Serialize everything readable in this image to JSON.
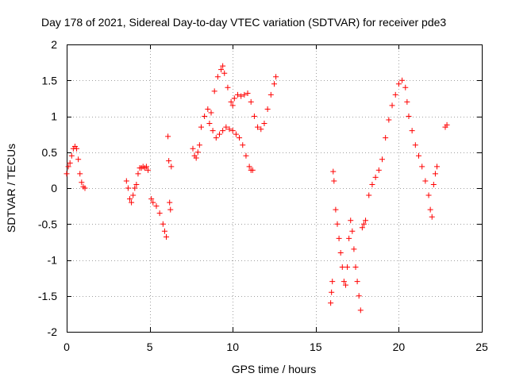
{
  "chart_data": {
    "type": "scatter",
    "title": "Day 178 of 2021, Sidereal Day-to-day VTEC variation (SDTVAR) for receiver pde3",
    "xlabel": "GPS time / hours",
    "ylabel": "SDTVAR / TECUs",
    "xlim": [
      0,
      25
    ],
    "ylim": [
      -2,
      2
    ],
    "xticks": [
      0,
      5,
      10,
      15,
      20,
      25
    ],
    "xtick_labels": [
      "0",
      "5",
      "10",
      "15",
      "20",
      "25"
    ],
    "yticks": [
      -2,
      -1.5,
      -1,
      -0.5,
      0,
      0.5,
      1,
      1.5,
      2
    ],
    "ytick_labels": [
      "-2",
      "-1.5",
      "-1",
      "-0.5",
      "0",
      "0.5",
      "1",
      "1.5",
      "2"
    ],
    "grid": true,
    "marker": "+",
    "color": "#ff0000",
    "series": [
      {
        "name": "SDTVAR",
        "x": [
          0.0,
          0.1,
          0.2,
          0.3,
          0.4,
          0.5,
          0.6,
          0.7,
          0.8,
          0.9,
          1.0,
          1.1,
          3.6,
          3.7,
          3.8,
          3.9,
          4.0,
          4.1,
          4.2,
          4.3,
          4.4,
          4.5,
          4.6,
          4.7,
          4.8,
          4.9,
          5.1,
          5.2,
          5.4,
          5.6,
          5.8,
          5.9,
          6.0,
          6.1,
          6.15,
          6.2,
          6.25,
          6.3,
          7.6,
          7.7,
          7.8,
          7.9,
          8.0,
          8.1,
          8.3,
          8.5,
          8.7,
          8.9,
          9.1,
          9.3,
          9.4,
          9.5,
          9.7,
          9.9,
          10.0,
          10.1,
          10.3,
          10.5,
          10.7,
          10.9,
          11.1,
          11.3,
          11.5,
          11.7,
          11.9,
          12.1,
          12.3,
          12.5,
          12.6,
          8.6,
          8.8,
          9.0,
          9.2,
          9.4,
          9.6,
          9.8,
          10.0,
          10.2,
          10.4,
          10.6,
          10.8,
          11.0,
          11.1,
          11.2,
          15.9,
          15.95,
          16.0,
          16.05,
          16.1,
          16.2,
          16.3,
          16.4,
          16.5,
          16.6,
          16.7,
          16.8,
          16.9,
          17.0,
          17.1,
          17.2,
          17.3,
          17.4,
          17.5,
          17.6,
          17.7,
          17.8,
          17.9,
          18.0,
          18.2,
          18.4,
          18.6,
          18.8,
          19.0,
          19.2,
          19.4,
          19.6,
          19.8,
          20.0,
          20.2,
          20.4,
          20.5,
          20.6,
          20.8,
          21.0,
          21.2,
          21.4,
          21.6,
          21.8,
          21.9,
          22.0,
          22.1,
          22.2,
          22.3,
          22.8,
          22.9
        ],
        "y": [
          0.2,
          0.3,
          0.35,
          0.45,
          0.55,
          0.58,
          0.55,
          0.4,
          0.2,
          0.08,
          0.02,
          0.0,
          0.1,
          0.0,
          -0.15,
          -0.2,
          -0.1,
          0.0,
          0.05,
          0.2,
          0.28,
          0.28,
          0.3,
          0.28,
          0.3,
          0.25,
          -0.15,
          -0.2,
          -0.25,
          -0.35,
          -0.5,
          -0.6,
          -0.68,
          0.72,
          0.38,
          -0.2,
          -0.3,
          0.3,
          0.55,
          0.45,
          0.42,
          0.5,
          0.6,
          0.85,
          1.0,
          1.1,
          1.05,
          1.35,
          1.55,
          1.65,
          1.7,
          1.6,
          1.4,
          1.2,
          1.15,
          1.25,
          1.3,
          1.28,
          1.3,
          1.32,
          1.2,
          1.0,
          0.85,
          0.82,
          0.9,
          1.1,
          1.3,
          1.45,
          1.55,
          0.9,
          0.8,
          0.7,
          0.75,
          0.8,
          0.85,
          0.82,
          0.8,
          0.75,
          0.7,
          0.6,
          0.45,
          0.3,
          0.25,
          0.25,
          -1.6,
          -1.45,
          -1.3,
          0.23,
          0.1,
          -0.3,
          -0.5,
          -0.7,
          -0.9,
          -1.1,
          -1.3,
          -1.35,
          -1.1,
          -0.7,
          -0.45,
          -0.6,
          -0.85,
          -1.1,
          -1.3,
          -1.5,
          -1.7,
          -0.55,
          -0.5,
          -0.45,
          -0.1,
          0.05,
          0.15,
          0.25,
          0.4,
          0.7,
          0.95,
          1.15,
          1.3,
          1.45,
          1.5,
          1.4,
          1.2,
          1.0,
          0.8,
          0.6,
          0.45,
          0.3,
          0.1,
          -0.1,
          -0.3,
          -0.4,
          0.05,
          0.2,
          0.3,
          0.85,
          0.88
        ]
      }
    ]
  }
}
